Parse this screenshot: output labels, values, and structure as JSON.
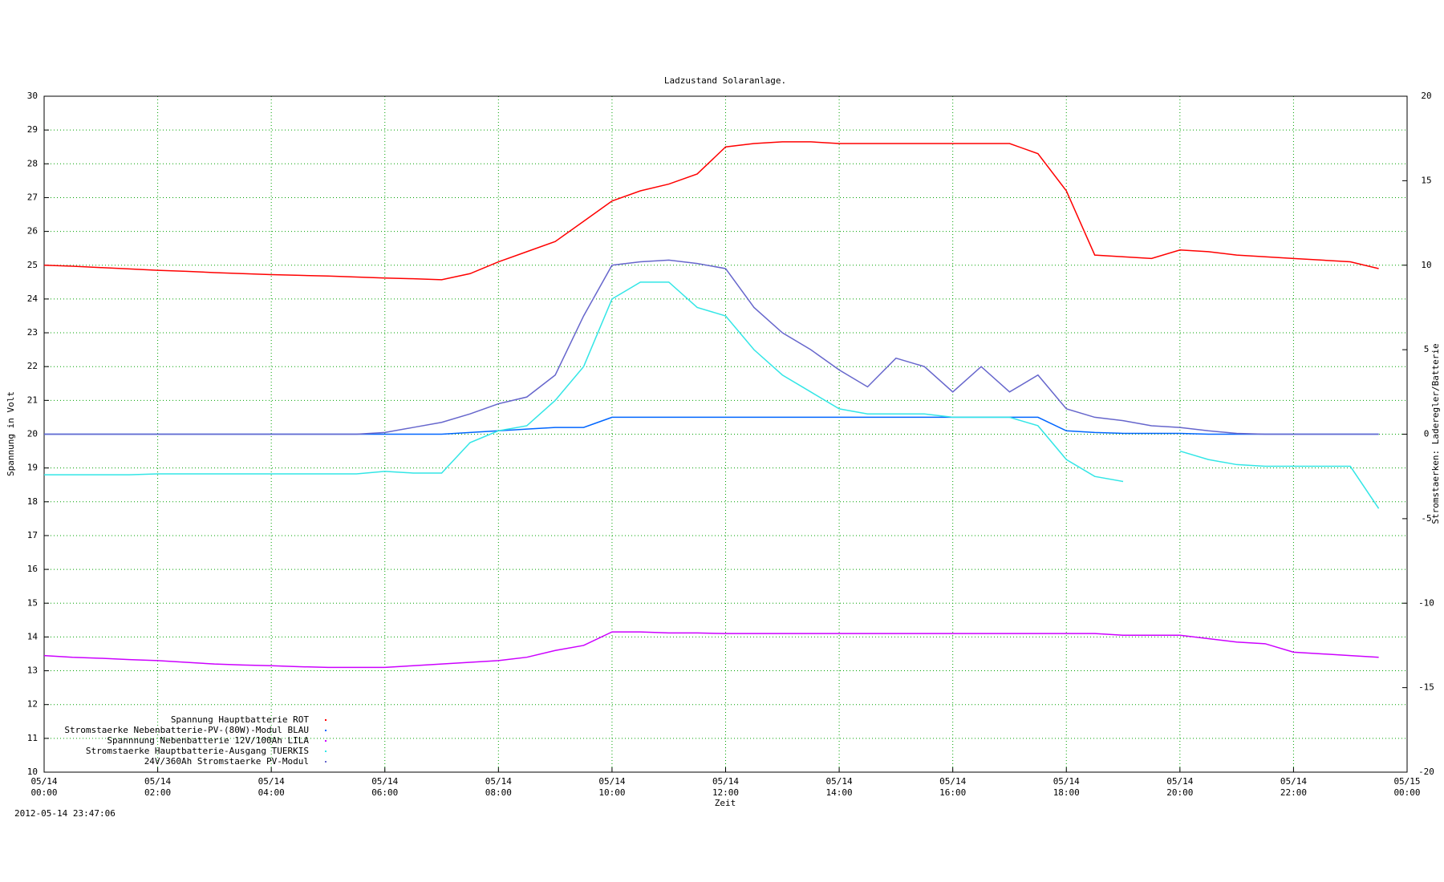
{
  "chart_data": {
    "type": "line",
    "title": "Ladzustand Solaranlage.",
    "ylabel": "Spannung in Volt",
    "y2label": "Stromstaerken: Laderegler/Batterie",
    "xlabel": "Zeit",
    "timestamp": "2012-05-14 23:47:06",
    "xlim": [
      0,
      24
    ],
    "xticks": [
      {
        "value": 0,
        "label": "05/14\n00:00"
      },
      {
        "value": 2,
        "label": "05/14\n02:00"
      },
      {
        "value": 4,
        "label": "05/14\n04:00"
      },
      {
        "value": 6,
        "label": "05/14\n06:00"
      },
      {
        "value": 8,
        "label": "05/14\n08:00"
      },
      {
        "value": 10,
        "label": "05/14\n10:00"
      },
      {
        "value": 12,
        "label": "05/14\n12:00"
      },
      {
        "value": 14,
        "label": "05/14\n14:00"
      },
      {
        "value": 16,
        "label": "05/14\n16:00"
      },
      {
        "value": 18,
        "label": "05/14\n18:00"
      },
      {
        "value": 20,
        "label": "05/14\n20:00"
      },
      {
        "value": 22,
        "label": "05/14\n22:00"
      },
      {
        "value": 24,
        "label": "05/15\n00:00"
      }
    ],
    "ylim": [
      10,
      30
    ],
    "yticks": [
      10,
      11,
      12,
      13,
      14,
      15,
      16,
      17,
      18,
      19,
      20,
      21,
      22,
      23,
      24,
      25,
      26,
      27,
      28,
      29,
      30
    ],
    "y2lim": [
      -20,
      20
    ],
    "y2ticks": [
      -20,
      -15,
      -10,
      -5,
      0,
      5,
      10,
      15,
      20
    ],
    "grid": true,
    "legend": "bottom left",
    "x": [
      0,
      0.5,
      1,
      1.5,
      2,
      2.5,
      3,
      3.5,
      4,
      4.5,
      5,
      5.5,
      6,
      6.5,
      7,
      7.5,
      8,
      8.5,
      9,
      9.5,
      10,
      10.5,
      11,
      11.5,
      12,
      12.5,
      13,
      13.5,
      14,
      14.5,
      15,
      15.5,
      16,
      16.5,
      17,
      17.5,
      18,
      18.5,
      19,
      19.5,
      20,
      20.5,
      21,
      21.5,
      22,
      22.5,
      23,
      23.5
    ],
    "series": [
      {
        "name": "Spannung Hauptbatterie ROT",
        "color": "#ff0000",
        "axis": "y",
        "values": [
          25.0,
          24.97,
          24.93,
          24.89,
          24.85,
          24.82,
          24.78,
          24.75,
          24.72,
          24.7,
          24.68,
          24.65,
          24.62,
          24.6,
          24.57,
          24.75,
          25.1,
          25.4,
          25.7,
          26.3,
          26.9,
          27.2,
          27.4,
          27.7,
          28.5,
          28.6,
          28.65,
          28.65,
          28.6,
          28.6,
          28.6,
          28.6,
          28.6,
          28.6,
          28.6,
          28.3,
          27.2,
          25.3,
          25.25,
          25.2,
          25.45,
          25.4,
          25.3,
          25.25,
          25.2,
          25.15,
          25.1,
          24.9
        ]
      },
      {
        "name": "Stromstaerke Nebenbatterie-PV-(80W)-Modul BLAU",
        "color": "#0066ff",
        "axis": "y2",
        "values": [
          0,
          0,
          0,
          0,
          0,
          0,
          0,
          0,
          0,
          0,
          0,
          0,
          0,
          0,
          0,
          0.1,
          0.2,
          0.3,
          0.4,
          0.4,
          1.0,
          1.0,
          1.0,
          1.0,
          1.0,
          1.0,
          1.0,
          1.0,
          1.0,
          1.0,
          1.0,
          1.0,
          1.0,
          1.0,
          1.0,
          1.0,
          0.2,
          0.1,
          0.05,
          0.05,
          0.05,
          0,
          0,
          0,
          0,
          0,
          0,
          0
        ]
      },
      {
        "name": "Spannnung Nebenbatterie 12V/100Ah LILA",
        "color": "#cc00ff",
        "axis": "y",
        "values": [
          13.45,
          13.4,
          13.37,
          13.33,
          13.3,
          13.25,
          13.2,
          13.17,
          13.15,
          13.12,
          13.1,
          13.1,
          13.1,
          13.15,
          13.2,
          13.25,
          13.3,
          13.4,
          13.6,
          13.75,
          14.15,
          14.15,
          14.12,
          14.12,
          14.1,
          14.1,
          14.1,
          14.1,
          14.1,
          14.1,
          14.1,
          14.1,
          14.1,
          14.1,
          14.1,
          14.1,
          14.1,
          14.1,
          14.05,
          14.05,
          14.05,
          13.95,
          13.85,
          13.8,
          13.55,
          13.5,
          13.45,
          13.4
        ]
      },
      {
        "name": "Stromstaerke Hauptbatterie-Ausgang TUERKIS",
        "color": "#33e6e6",
        "axis": "y2",
        "values": [
          -2.4,
          -2.4,
          -2.4,
          -2.4,
          -2.35,
          -2.35,
          -2.35,
          -2.35,
          -2.35,
          -2.35,
          -2.35,
          -2.35,
          -2.2,
          -2.3,
          -2.3,
          -0.5,
          0.2,
          0.5,
          2,
          4,
          8,
          9,
          9,
          7.5,
          7,
          5,
          3.5,
          2.5,
          1.5,
          1.2,
          1.2,
          1.2,
          1,
          1,
          1,
          0.5,
          -1.5,
          -2.5,
          -2.8,
          null,
          -1,
          -1.5,
          -1.8,
          -1.9,
          -1.9,
          -1.9,
          -1.9,
          -4.4
        ]
      },
      {
        "name": "24V/360Ah Stromstaerke PV-Modul",
        "color": "#6666cc",
        "axis": "y2",
        "values": [
          0,
          0,
          0,
          0,
          0,
          0,
          0,
          0,
          0,
          0,
          0,
          0,
          0.1,
          0.4,
          0.7,
          1.2,
          1.8,
          2.2,
          3.5,
          7,
          10,
          10.2,
          10.3,
          10.1,
          9.8,
          7.5,
          6,
          5,
          3.8,
          2.8,
          4.5,
          4,
          2.5,
          4,
          2.5,
          3.5,
          1.5,
          1.0,
          0.8,
          0.5,
          0.4,
          0.2,
          0.05,
          0,
          0,
          0,
          0,
          0
        ]
      }
    ]
  }
}
